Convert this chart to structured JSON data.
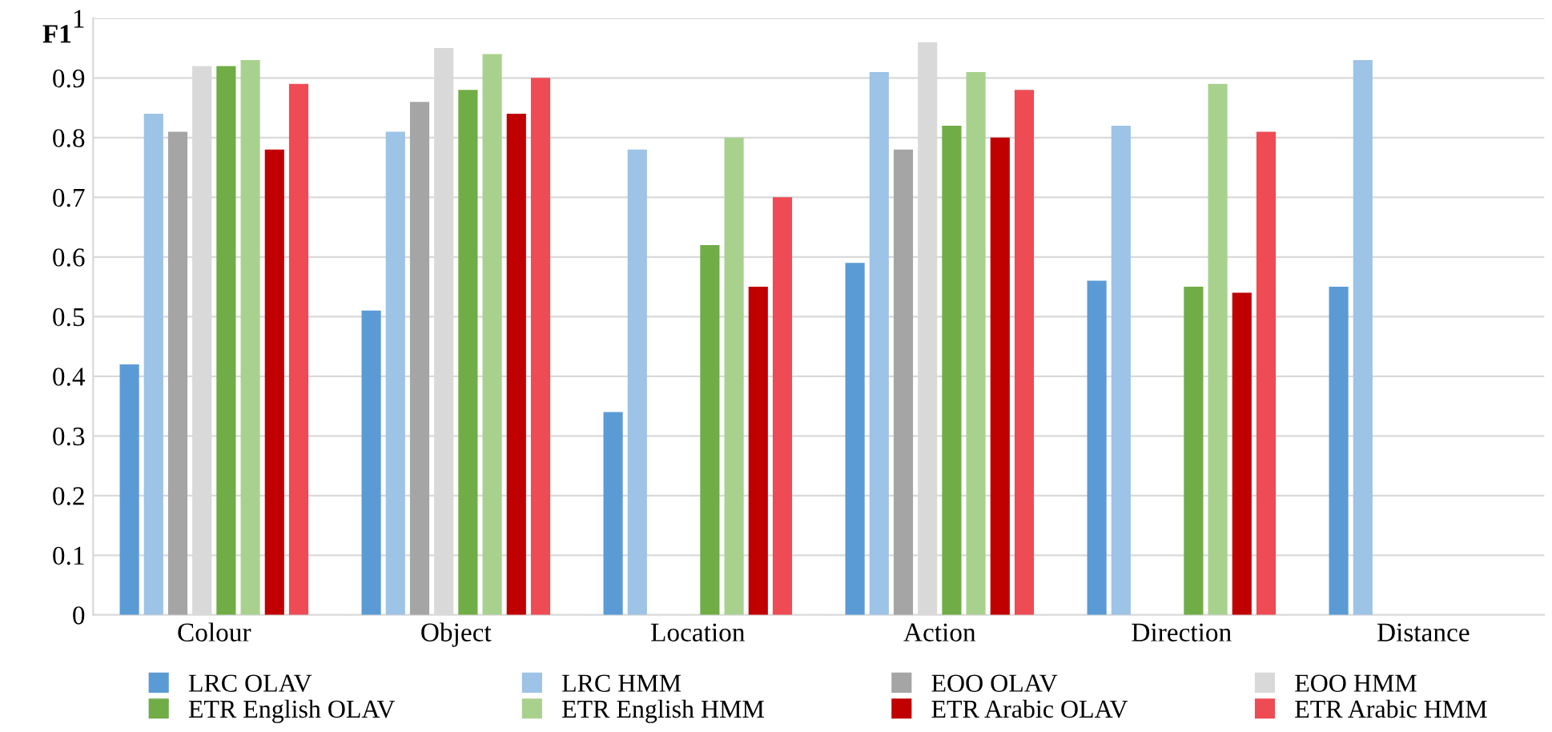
{
  "chart_data": {
    "type": "bar",
    "ylabel": "F1",
    "categories": [
      "Colour",
      "Object",
      "Location",
      "Action",
      "Direction",
      "Distance"
    ],
    "series": [
      {
        "name": "LRC OLAV",
        "color": "#5b9bd5",
        "values": [
          0.42,
          0.51,
          0.34,
          0.59,
          0.56,
          0.55
        ]
      },
      {
        "name": "LRC HMM",
        "color": "#9dc3e6",
        "values": [
          0.84,
          0.81,
          0.78,
          0.91,
          0.82,
          0.93
        ]
      },
      {
        "name": "EOO OLAV",
        "color": "#a5a5a5",
        "values": [
          0.81,
          0.86,
          null,
          0.78,
          null,
          null
        ]
      },
      {
        "name": "EOO HMM",
        "color": "#d9d9d9",
        "values": [
          0.92,
          0.95,
          null,
          0.96,
          null,
          null
        ]
      },
      {
        "name": "ETR English OLAV",
        "color": "#70ad47",
        "values": [
          0.92,
          0.88,
          0.62,
          0.82,
          0.55,
          null
        ]
      },
      {
        "name": "ETR English HMM",
        "color": "#a9d18e",
        "values": [
          0.93,
          0.94,
          0.8,
          0.91,
          0.89,
          null
        ]
      },
      {
        "name": "ETR Arabic OLAV",
        "color": "#c00000",
        "values": [
          0.78,
          0.84,
          0.55,
          0.8,
          0.54,
          null
        ]
      },
      {
        "name": "ETR Arabic HMM",
        "color": "#ee4b55",
        "values": [
          0.89,
          0.9,
          0.7,
          0.88,
          0.81,
          null
        ]
      }
    ],
    "ylim": [
      0,
      1
    ],
    "yticks": [
      0,
      0.1,
      0.2,
      0.3,
      0.4,
      0.5,
      0.6,
      0.7,
      0.8,
      0.9,
      1
    ],
    "grid": "y",
    "legend": "bottom"
  }
}
